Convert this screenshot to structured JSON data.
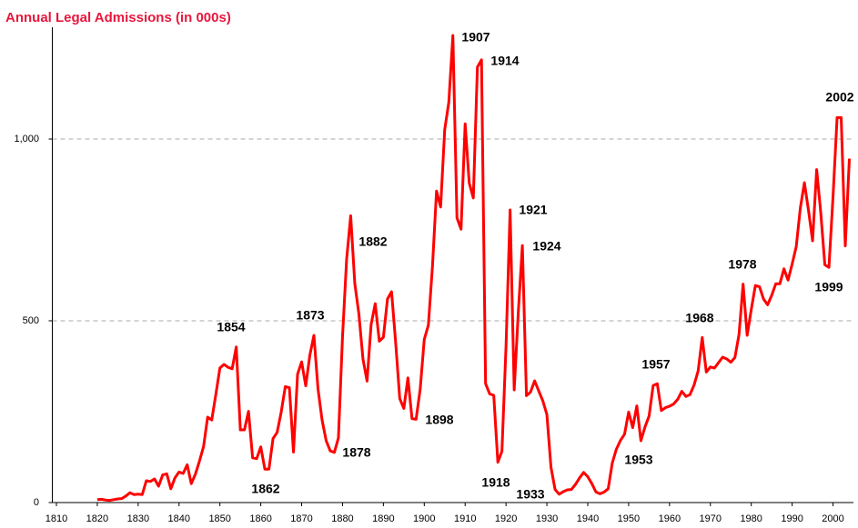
{
  "chart_data": {
    "type": "line",
    "title": "Annual Legal Admissions (in 000s)",
    "x": [
      1820,
      1821,
      1822,
      1823,
      1824,
      1825,
      1826,
      1827,
      1828,
      1829,
      1830,
      1831,
      1832,
      1833,
      1834,
      1835,
      1836,
      1837,
      1838,
      1839,
      1840,
      1841,
      1842,
      1843,
      1844,
      1845,
      1846,
      1847,
      1848,
      1849,
      1850,
      1851,
      1852,
      1853,
      1854,
      1855,
      1856,
      1857,
      1858,
      1859,
      1860,
      1861,
      1862,
      1863,
      1864,
      1865,
      1866,
      1867,
      1868,
      1869,
      1870,
      1871,
      1872,
      1873,
      1874,
      1875,
      1876,
      1877,
      1878,
      1879,
      1880,
      1881,
      1882,
      1883,
      1884,
      1885,
      1886,
      1887,
      1888,
      1889,
      1890,
      1891,
      1892,
      1893,
      1894,
      1895,
      1896,
      1897,
      1898,
      1899,
      1900,
      1901,
      1902,
      1903,
      1904,
      1905,
      1906,
      1907,
      1908,
      1909,
      1910,
      1911,
      1912,
      1913,
      1914,
      1915,
      1916,
      1917,
      1918,
      1919,
      1920,
      1921,
      1922,
      1923,
      1924,
      1925,
      1926,
      1927,
      1928,
      1929,
      1930,
      1931,
      1932,
      1933,
      1934,
      1935,
      1936,
      1937,
      1938,
      1939,
      1940,
      1941,
      1942,
      1943,
      1944,
      1945,
      1946,
      1947,
      1948,
      1949,
      1950,
      1951,
      1952,
      1953,
      1954,
      1955,
      1956,
      1957,
      1958,
      1959,
      1960,
      1961,
      1962,
      1963,
      1964,
      1965,
      1966,
      1967,
      1968,
      1969,
      1970,
      1971,
      1972,
      1973,
      1974,
      1975,
      1976,
      1977,
      1978,
      1979,
      1980,
      1981,
      1982,
      1983,
      1984,
      1985,
      1986,
      1987,
      1988,
      1989,
      1990,
      1991,
      1992,
      1993,
      1994,
      1995,
      1996,
      1997,
      1998,
      1999,
      2000,
      2001,
      2002,
      2003,
      2004
    ],
    "series": [
      {
        "color": "#ff0000",
        "values": [
          8,
          9,
          7,
          6,
          8,
          10,
          11,
          18,
          27,
          22,
          23,
          22,
          60,
          58,
          65,
          45,
          76,
          79,
          38,
          68,
          84,
          80,
          104,
          52,
          78,
          114,
          154,
          235,
          227,
          297,
          370,
          380,
          372,
          368,
          428,
          200,
          200,
          251,
          123,
          121,
          153,
          92,
          92,
          176,
          193,
          249,
          319,
          316,
          139,
          353,
          387,
          321,
          405,
          460,
          313,
          227,
          170,
          142,
          138,
          178,
          457,
          669,
          789,
          603,
          519,
          395,
          334,
          490,
          547,
          444,
          455,
          560,
          580,
          440,
          286,
          259,
          343,
          231,
          229,
          312,
          449,
          488,
          649,
          857,
          813,
          1026,
          1101,
          1285,
          783,
          752,
          1042,
          879,
          838,
          1198,
          1218,
          327,
          299,
          295,
          111,
          141,
          430,
          805,
          310,
          523,
          707,
          294,
          304,
          335,
          307,
          280,
          242,
          97,
          36,
          23,
          30,
          35,
          36,
          50,
          68,
          83,
          71,
          52,
          29,
          24,
          29,
          38,
          109,
          147,
          171,
          188,
          249,
          206,
          266,
          170,
          208,
          238,
          322,
          327,
          253,
          261,
          265,
          271,
          284,
          306,
          292,
          297,
          323,
          362,
          454,
          359,
          373,
          370,
          385,
          400,
          395,
          386,
          399,
          462,
          601,
          460,
          531,
          597,
          594,
          560,
          544,
          570,
          602,
          602,
          643,
          612,
          656,
          704,
          810,
          880,
          804,
          720,
          916,
          798,
          654,
          647,
          841,
          1059,
          1059,
          706,
          946
        ]
      }
    ],
    "xlim": [
      1809,
      2005
    ],
    "xticks": [
      1810,
      1820,
      1830,
      1840,
      1850,
      1860,
      1870,
      1880,
      1890,
      1900,
      1910,
      1920,
      1930,
      1940,
      1950,
      1960,
      1970,
      1980,
      1990,
      2000
    ],
    "ylim": [
      0,
      1300
    ],
    "yticks": [
      0,
      500,
      {
        "value": 1000,
        "label": "1,000"
      }
    ],
    "grid": true,
    "annotations": [
      "1854",
      "1862",
      "1873",
      "1878",
      "1882",
      "1898",
      "1907",
      "1914",
      "1918",
      "1921",
      "1924",
      "1933",
      "1953",
      "1957",
      "1968",
      "1978",
      "1999",
      "2002"
    ]
  }
}
